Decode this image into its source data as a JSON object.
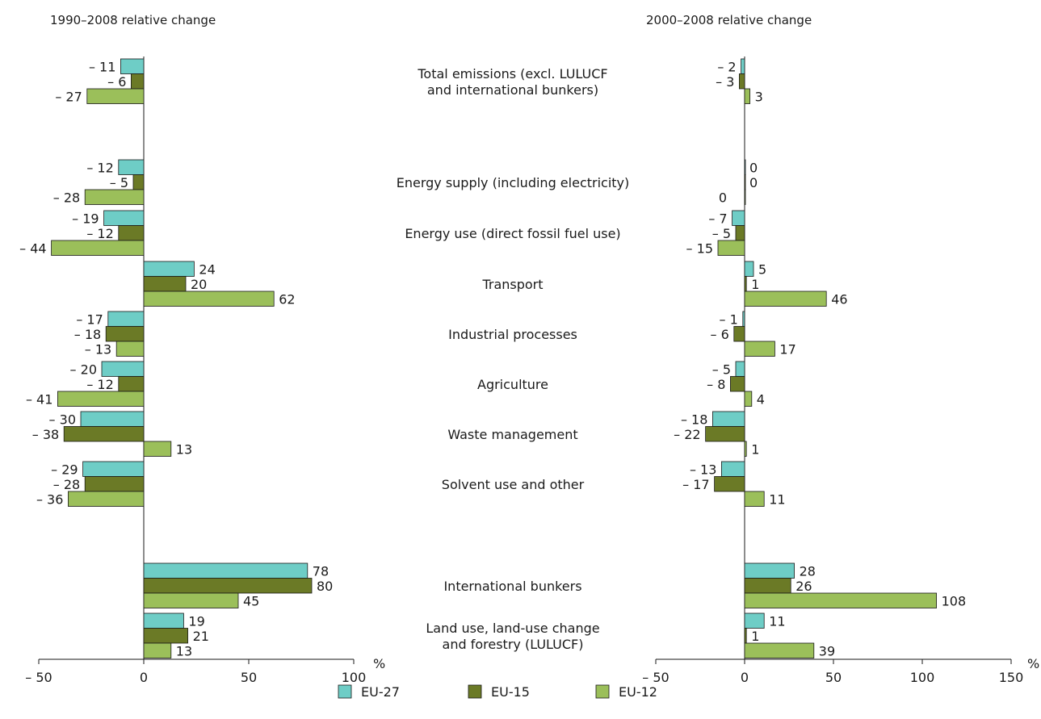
{
  "chart_data": [
    {
      "type": "bar",
      "orientation": "horizontal",
      "title": "1990–2008 relative change",
      "unit": "%",
      "xlim": [
        -50,
        100
      ],
      "ticks": [
        -50,
        0,
        50,
        100
      ],
      "tick_labels": [
        "– 50",
        "0",
        "50",
        "100"
      ],
      "series": [
        {
          "name": "EU-27",
          "values": [
            -11,
            -12,
            -19,
            24,
            -17,
            -20,
            -30,
            -29,
            78,
            19
          ]
        },
        {
          "name": "EU-15",
          "values": [
            -6,
            -5,
            -12,
            20,
            -18,
            -12,
            -38,
            -28,
            80,
            21
          ]
        },
        {
          "name": "EU-12",
          "values": [
            -27,
            -28,
            -44,
            62,
            -13,
            -41,
            13,
            -36,
            45,
            13
          ]
        }
      ]
    },
    {
      "type": "bar",
      "orientation": "horizontal",
      "title": "2000–2008 relative change",
      "unit": "%",
      "xlim": [
        -50,
        150
      ],
      "ticks": [
        -50,
        0,
        50,
        100,
        150
      ],
      "tick_labels": [
        "– 50",
        "0",
        "50",
        "100",
        "150"
      ],
      "series": [
        {
          "name": "EU-27",
          "values": [
            -2,
            0,
            -7,
            5,
            -1,
            -5,
            -18,
            -13,
            28,
            11
          ]
        },
        {
          "name": "EU-15",
          "values": [
            -3,
            0,
            -5,
            1,
            -6,
            -8,
            -22,
            -17,
            26,
            1
          ]
        },
        {
          "name": "EU-12",
          "values": [
            3,
            0,
            -15,
            46,
            17,
            4,
            1,
            11,
            108,
            39
          ]
        }
      ]
    }
  ],
  "categories": [
    [
      "Total emissions (excl. LULUCF",
      "and international bunkers)"
    ],
    [
      "Energy supply (including electricity)"
    ],
    [
      "Energy use (direct fossil fuel use)"
    ],
    [
      "Transport"
    ],
    [
      "Industrial processes"
    ],
    [
      "Agriculture"
    ],
    [
      "Waste management"
    ],
    [
      "Solvent use and other"
    ],
    [
      "International bunkers"
    ],
    [
      "Land use, land-use change",
      "and forestry (LULUCF)"
    ]
  ],
  "colors": {
    "EU-27": "#6ecdc6",
    "EU-15": "#6b7a26",
    "EU-12": "#9bbf5a"
  },
  "legend": [
    "EU-27",
    "EU-15",
    "EU-12"
  ]
}
